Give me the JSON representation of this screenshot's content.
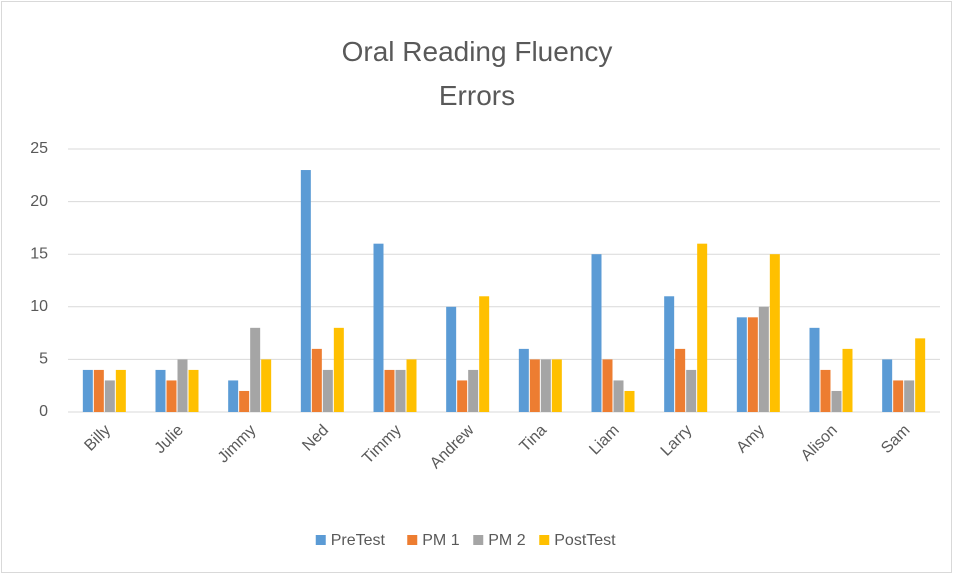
{
  "chart_data": {
    "type": "bar",
    "title": "Oral Reading Fluency Errors",
    "categories": [
      "Billy",
      "Julie",
      "Jimmy",
      "Ned",
      "Timmy",
      "Andrew",
      "Tina",
      "Liam",
      "Larry",
      "Amy",
      "Alison",
      "Sam"
    ],
    "series": [
      {
        "name": "PreTest",
        "color": "#5b9bd5",
        "values": [
          4,
          4,
          3,
          23,
          16,
          10,
          6,
          15,
          11,
          9,
          8,
          5
        ]
      },
      {
        "name": "PM 1",
        "color": "#ed7d31",
        "values": [
          4,
          3,
          2,
          6,
          4,
          3,
          5,
          5,
          6,
          9,
          4,
          3
        ]
      },
      {
        "name": "PM 2",
        "color": "#a5a5a5",
        "values": [
          3,
          5,
          8,
          4,
          4,
          4,
          5,
          3,
          4,
          10,
          2,
          3
        ]
      },
      {
        "name": "PostTest",
        "color": "#ffc000",
        "values": [
          4,
          4,
          5,
          8,
          5,
          11,
          5,
          2,
          16,
          15,
          6,
          7
        ]
      }
    ],
    "ylim": [
      0,
      25
    ],
    "yticks": [
      0,
      5,
      10,
      15,
      20,
      25
    ],
    "grid": true,
    "legend": "bottom"
  }
}
